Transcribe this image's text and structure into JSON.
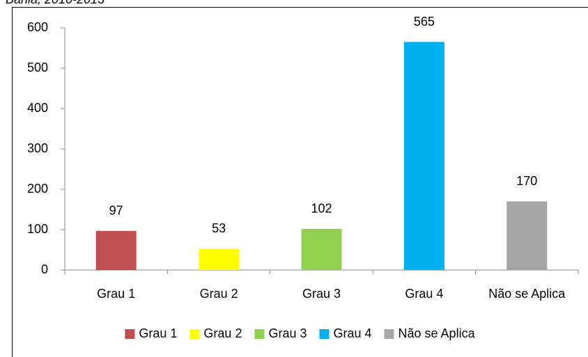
{
  "chart_data": {
    "type": "bar",
    "title": "Bahia, 2010-2013",
    "categories": [
      "Grau 1",
      "Grau 2",
      "Grau 3",
      "Grau 4",
      "Não se Aplica"
    ],
    "values": [
      97,
      53,
      102,
      565,
      170
    ],
    "colors": [
      "#c0504d",
      "#ffff00",
      "#92d050",
      "#00b0f0",
      "#a6a6a6"
    ],
    "ylim": [
      0,
      600
    ],
    "yticks": [
      0,
      100,
      200,
      300,
      400,
      500,
      600
    ],
    "grid": false,
    "legend": "bottom"
  }
}
